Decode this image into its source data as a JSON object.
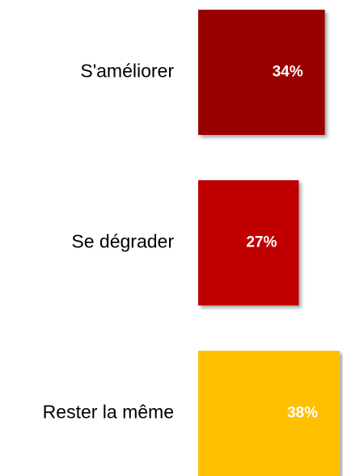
{
  "chart_data": {
    "type": "bar",
    "orientation": "horizontal",
    "categories": [
      "S'améliorer",
      "Se dégrader",
      "Rester la même"
    ],
    "values": [
      34,
      27,
      38
    ],
    "value_labels": [
      "34%",
      "27%",
      "38%"
    ],
    "colors": [
      "#990000",
      "#c00000",
      "#ffc000"
    ]
  }
}
